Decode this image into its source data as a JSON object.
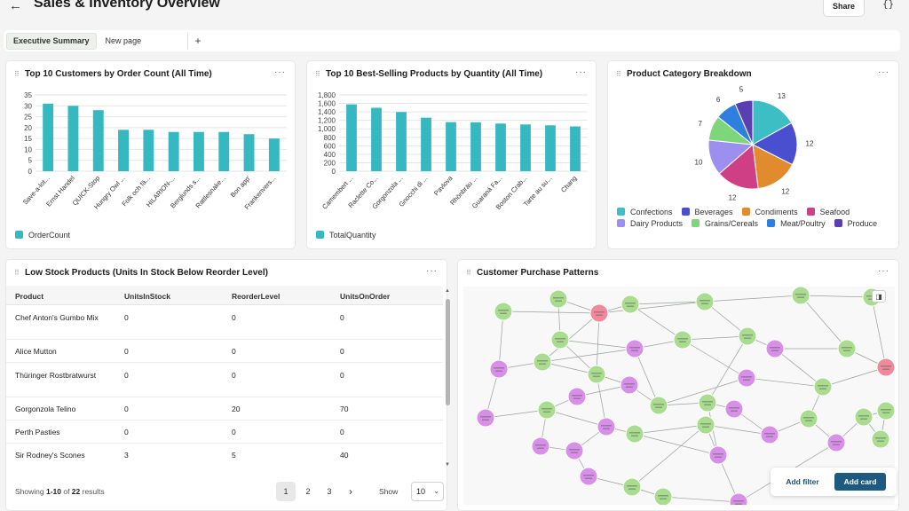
{
  "header": {
    "back_icon": "arrow-left-icon",
    "title": "Sales & Inventory Overview",
    "share_label": "Share",
    "json_label": "{}"
  },
  "tabs": {
    "items": [
      {
        "label": "Executive Summary",
        "active": true
      },
      {
        "label": "New page",
        "active": false
      }
    ],
    "add_label": "+"
  },
  "customers_card": {
    "title": "Top 10 Customers by Order Count (All Time)",
    "menu": "···",
    "legend": "OrderCount",
    "color": "#35b8c0"
  },
  "products_card": {
    "title": "Top 10 Best-Selling Products by Quantity (All Time)",
    "menu": "···",
    "legend": "TotalQuantity",
    "color": "#35b8c0"
  },
  "category_card": {
    "title": "Product Category Breakdown",
    "menu": "···"
  },
  "low_stock": {
    "title": "Low Stock Products (Units In Stock Below Reorder Level)",
    "menu": "···",
    "columns": [
      "Product",
      "UnitsInStock",
      "ReorderLevel",
      "UnitsOnOrder"
    ],
    "rows": [
      [
        "Chef Anton's Gumbo Mix",
        "0",
        "0",
        "0"
      ],
      [
        "Alice Mutton",
        "0",
        "0",
        "0"
      ],
      [
        "Thüringer Rostbratwurst",
        "0",
        "0",
        "0"
      ],
      [
        "Gorgonzola Telino",
        "0",
        "20",
        "70"
      ],
      [
        "Perth Pasties",
        "0",
        "0",
        "0"
      ],
      [
        "Sir Rodney's Scones",
        "3",
        "5",
        "40"
      ]
    ],
    "footer_prefix": "Showing ",
    "footer_range": "1-10",
    "footer_mid": " of ",
    "footer_total": "22",
    "footer_suffix": " results",
    "pages": [
      "1",
      "2",
      "3"
    ],
    "next_icon": "chevron-right-icon",
    "show_label": "Show",
    "page_size": "10"
  },
  "patterns_card": {
    "title": "Customer Purchase Patterns",
    "menu": "···",
    "add_filter": "Add filter",
    "add_card": "Add card",
    "node_colors": {
      "customer": "#d88fe8",
      "product": "#a9dc8f",
      "highlight": "#f08a9a"
    }
  },
  "chart_data": [
    {
      "type": "bar",
      "title": "Top 10 Customers by Order Count (All Time)",
      "categories": [
        "Save-a-lot...",
        "Ernst Handel",
        "QUICK-Stop",
        "Hungry Owl ...",
        "Folk och fä...",
        "HILARION-...",
        "Berglunds s...",
        "Rattlesnake...",
        "Bon app'",
        "Frankenvers..."
      ],
      "series": [
        {
          "name": "OrderCount",
          "values": [
            31,
            30,
            28,
            19,
            19,
            18,
            18,
            18,
            17,
            15
          ]
        }
      ],
      "ylim": [
        0,
        35
      ],
      "yticks": [
        "0",
        "5",
        "10",
        "15",
        "20",
        "25",
        "30",
        "35"
      ],
      "grid": true,
      "legend_position": "bottom-left"
    },
    {
      "type": "bar",
      "title": "Top 10 Best-Selling Products by Quantity (All Time)",
      "categories": [
        "Camembert ...",
        "Raclette Co...",
        "Gorgonzola ...",
        "Gnocchi di ...",
        "Pavlova",
        "Rhönbräu ...",
        "Guaraná Fa...",
        "Boston Crab...",
        "Tarte au su...",
        "Chang"
      ],
      "series": [
        {
          "name": "TotalQuantity",
          "values": [
            1577,
            1496,
            1397,
            1263,
            1158,
            1155,
            1125,
            1103,
            1083,
            1057
          ]
        }
      ],
      "ylim": [
        0,
        1800
      ],
      "yticks": [
        "0",
        "200",
        "400",
        "600",
        "800",
        "1,000",
        "1,200",
        "1,400",
        "1,600",
        "1,800"
      ],
      "grid": true,
      "legend_position": "bottom-left"
    },
    {
      "type": "pie",
      "title": "Product Category Breakdown",
      "slices": [
        {
          "label": "Confections",
          "value": 13,
          "color": "#3dbdc4"
        },
        {
          "label": "Beverages",
          "value": 12,
          "color": "#4a4fcf"
        },
        {
          "label": "Condiments",
          "value": 12,
          "color": "#e08b2d"
        },
        {
          "label": "Seafood",
          "value": 12,
          "color": "#cf3f86"
        },
        {
          "label": "Dairy Products",
          "value": 10,
          "color": "#9c8ff0"
        },
        {
          "label": "Grains/Cereals",
          "value": 7,
          "color": "#7ed67a"
        },
        {
          "label": "Meat/Poultry",
          "value": 6,
          "color": "#2f7fe0"
        },
        {
          "label": "Produce",
          "value": 5,
          "color": "#5b3fb0"
        }
      ],
      "legend_position": "bottom"
    }
  ]
}
